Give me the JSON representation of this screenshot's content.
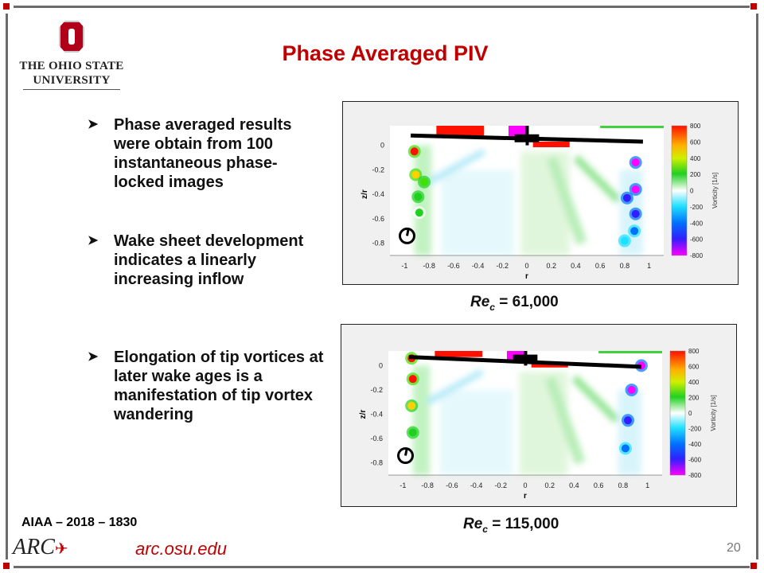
{
  "slide": {
    "title": "Phase Averaged PIV",
    "page_number": "20",
    "reference": "AIAA – 2018 – 1830",
    "url": "arc.osu.edu"
  },
  "logo": {
    "line1": "THE OHIO STATE",
    "line2": "UNIVERSITY",
    "arc": "ARC"
  },
  "bullets": [
    {
      "icon": "arrow-bullet-icon",
      "text": "Phase averaged results were obtain from 100 instantaneous phase-locked images"
    },
    {
      "icon": "arrow-bullet-icon",
      "text": "Wake sheet development indicates a linearly increasing inflow"
    },
    {
      "icon": "arrow-bullet-icon",
      "text": "Elongation of tip vortices at later wake ages is a manifestation of tip vortex wandering"
    }
  ],
  "colors": {
    "accent": "#c00000",
    "frame": "#6b6b6b"
  },
  "chart_data": [
    {
      "type": "heatmap",
      "caption_re": "Re",
      "caption_sub": "c",
      "caption_value": "= 61,000",
      "xlabel": "r",
      "ylabel": "z/r",
      "xlim": [
        -1.12,
        1.12
      ],
      "ylim": [
        -0.9,
        0.16
      ],
      "xticks": [
        -1,
        -0.8,
        -0.6,
        -0.4,
        -0.2,
        0,
        0.2,
        0.4,
        0.6,
        0.8,
        1
      ],
      "yticks": [
        0,
        -0.2,
        -0.4,
        -0.6,
        -0.8
      ],
      "colorbar": {
        "label": "Vorticity [1/s]",
        "range": [
          -800,
          800
        ],
        "ticks": [
          800,
          600,
          400,
          200,
          0,
          -200,
          -400,
          -600,
          -800
        ]
      },
      "blade": [
        [
          -0.95,
          0.08
        ],
        [
          0.95,
          0.03
        ]
      ],
      "vortices": [
        [
          -0.92,
          -0.05,
          800
        ],
        [
          -0.91,
          -0.24,
          700
        ],
        [
          -0.84,
          -0.3,
          350
        ],
        [
          -0.89,
          -0.42,
          300
        ],
        [
          -0.88,
          -0.55,
          200
        ],
        [
          0.89,
          -0.14,
          -800
        ],
        [
          0.89,
          -0.36,
          -800
        ],
        [
          0.82,
          -0.43,
          -600
        ],
        [
          0.89,
          -0.56,
          -600
        ],
        [
          0.88,
          -0.7,
          -300
        ],
        [
          0.8,
          -0.78,
          -250
        ]
      ]
    },
    {
      "type": "heatmap",
      "caption_re": "Re",
      "caption_sub": "c",
      "caption_value": "= 115,000",
      "xlabel": "r",
      "ylabel": "z/r",
      "xlim": [
        -1.12,
        1.12
      ],
      "ylim": [
        -0.9,
        0.12
      ],
      "xticks": [
        -1,
        -0.8,
        -0.6,
        -0.4,
        -0.2,
        0,
        0.2,
        0.4,
        0.6,
        0.8,
        1
      ],
      "yticks": [
        0,
        -0.2,
        -0.4,
        -0.6,
        -0.8
      ],
      "colorbar": {
        "label": "Vorticity [1/s]",
        "range": [
          -800,
          800
        ],
        "ticks": [
          800,
          600,
          400,
          200,
          0,
          -200,
          -400,
          -600,
          -800
        ]
      },
      "blade": [
        [
          -0.95,
          0.07
        ],
        [
          0.95,
          -0.01
        ]
      ],
      "vortices": [
        [
          -0.93,
          0.06,
          800
        ],
        [
          -0.92,
          -0.11,
          800
        ],
        [
          -0.93,
          -0.33,
          550
        ],
        [
          -0.92,
          -0.55,
          300
        ],
        [
          0.95,
          0.0,
          -800
        ],
        [
          0.87,
          -0.2,
          -800
        ],
        [
          0.84,
          -0.45,
          -600
        ],
        [
          0.82,
          -0.68,
          -300
        ]
      ]
    }
  ]
}
